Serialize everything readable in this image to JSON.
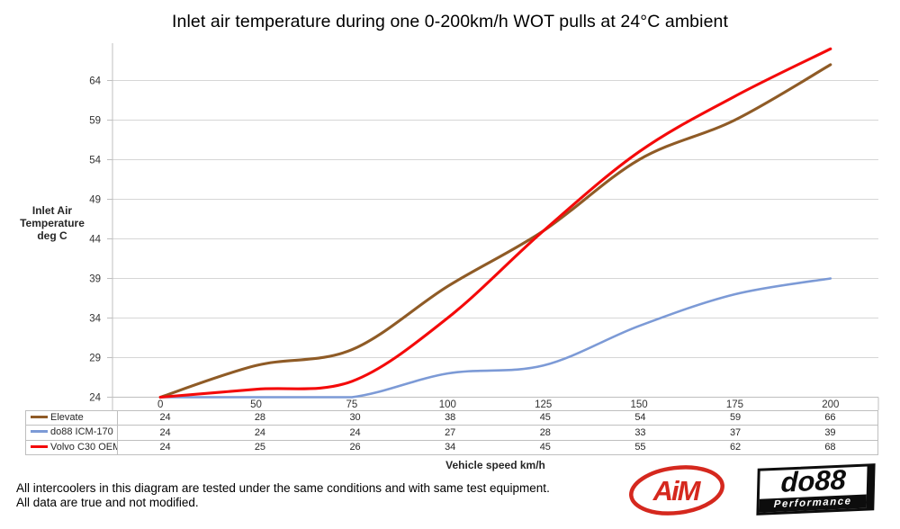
{
  "title": "Inlet air temperature during one 0-200km/h WOT pulls at 24°C ambient",
  "y_axis": {
    "title_lines": [
      "Inlet Air",
      "Temperature",
      "deg C"
    ]
  },
  "x_axis": {
    "title": "Vehicle speed km/h"
  },
  "chart_data": {
    "type": "line",
    "title": "Inlet air temperature during one 0-200km/h WOT pulls at 24°C ambient",
    "xlabel": "Vehicle speed km/h",
    "ylabel": "Inlet Air Temperature deg C",
    "categories": [
      "0",
      "50",
      "75",
      "100",
      "125",
      "150",
      "175",
      "200"
    ],
    "series": [
      {
        "name": "Elevate",
        "color": "#8F5B26",
        "values": [
          24,
          28,
          30,
          38,
          45,
          54,
          59,
          66
        ]
      },
      {
        "name": "do88 ICM-170",
        "color": "#7C9AD6",
        "values": [
          24,
          24,
          24,
          27,
          28,
          33,
          37,
          39
        ]
      },
      {
        "name": "Volvo C30 OEM",
        "color": "#F40A0A",
        "values": [
          24,
          25,
          26,
          34,
          45,
          55,
          62,
          68
        ]
      }
    ],
    "yticks": [
      24,
      29,
      34,
      39,
      44,
      49,
      54,
      59,
      64
    ],
    "ylim": [
      24,
      69
    ],
    "grid": true,
    "smooth": true,
    "legend_position": "data-table-left"
  },
  "footer": {
    "line1": "All intercoolers in this diagram are tested under the same conditions and with same test equipment.",
    "line2": "All data are true and not modified."
  },
  "logos": {
    "aim": {
      "text": "AiM",
      "color": "#D5281E"
    },
    "do88": {
      "text": "do88",
      "subtext": "Performance"
    }
  },
  "colors": {
    "gridline": "#D6D6D6",
    "axis": "#BFBFBF",
    "tick_text": "#333333"
  }
}
